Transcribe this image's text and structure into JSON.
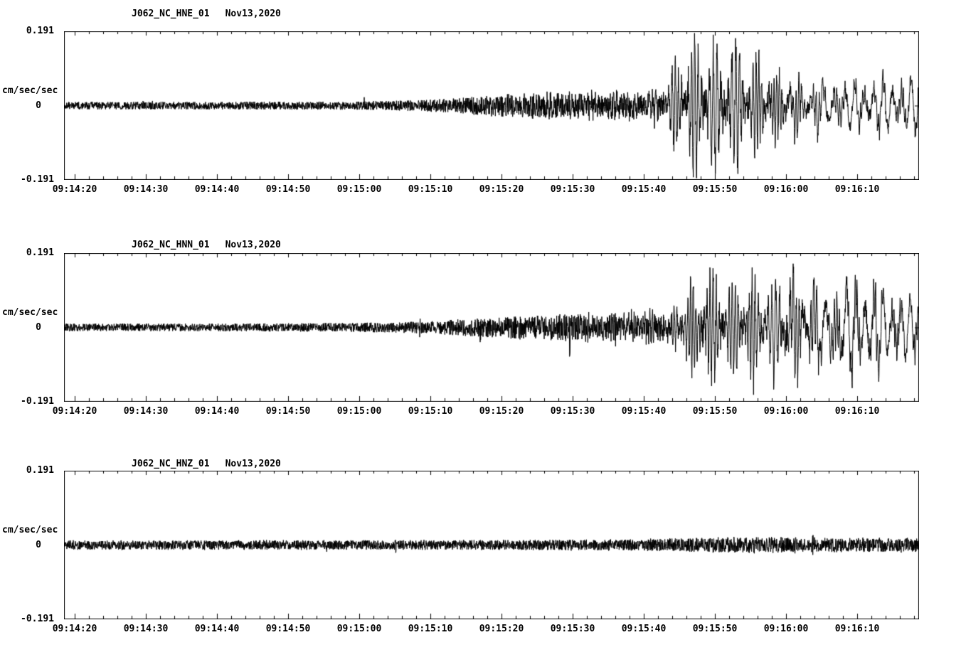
{
  "figure": {
    "background": "#ffffff",
    "trace_color": "#000000",
    "axis_color": "#000000"
  },
  "time_axis": {
    "tick_labels": [
      "09:14:20",
      "09:14:30",
      "09:14:40",
      "09:14:50",
      "09:15:00",
      "09:15:10",
      "09:15:20",
      "09:15:30",
      "09:15:40",
      "09:15:50",
      "09:16:00",
      "09:16:10"
    ],
    "tick_seconds": [
      0,
      10,
      20,
      30,
      40,
      50,
      60,
      70,
      80,
      90,
      100,
      110
    ],
    "minor_tick_interval_s": 2,
    "window_start_s": -1.5,
    "window_end_s": 118.7
  },
  "chart_data": [
    {
      "type": "line",
      "title": "J062_NC_HNE_01",
      "date": "Nov13,2020",
      "xlabel": "",
      "ylabel": "cm/sec/sec",
      "ylim": [
        -0.191,
        0.191
      ],
      "ytick_labels": {
        "top": "0.191",
        "zero": "0",
        "bottom": "-0.191"
      },
      "x_tick_labels": [
        "09:14:20",
        "09:14:30",
        "09:14:40",
        "09:14:50",
        "09:15:00",
        "09:15:10",
        "09:15:20",
        "09:15:30",
        "09:15:40",
        "09:15:50",
        "09:16:00",
        "09:16:10"
      ],
      "description": "Horizontal east accelerogram: low background noise, emergent higher-frequency arrivals after 09:15:10, strong motion burst beginning ~09:15:43 peaking near full scale 0.19 around 09:15:47, long lower-frequency coda through 09:16:18",
      "strong_motion": true,
      "strong_motion_onset_s": 83,
      "peak_amp": 0.19,
      "peak_time_s": 87,
      "envelope_t_s": [
        -3,
        0,
        20,
        40,
        48,
        54,
        58,
        62,
        68,
        74,
        80,
        83,
        85,
        87,
        90,
        93,
        96,
        99,
        102,
        106,
        110,
        114,
        118,
        119
      ],
      "envelope_amp": [
        0.01,
        0.01,
        0.01,
        0.011,
        0.014,
        0.02,
        0.028,
        0.034,
        0.038,
        0.04,
        0.046,
        0.06,
        0.13,
        0.19,
        0.155,
        0.17,
        0.13,
        0.1,
        0.085,
        0.075,
        0.07,
        0.078,
        0.082,
        0.082
      ]
    },
    {
      "type": "line",
      "title": "J062_NC_HNN_01",
      "date": "Nov13,2020",
      "xlabel": "",
      "ylabel": "cm/sec/sec",
      "ylim": [
        -0.191,
        0.191
      ],
      "ytick_labels": {
        "top": "0.191",
        "zero": "0",
        "bottom": "-0.191"
      },
      "x_tick_labels": [
        "09:14:20",
        "09:14:30",
        "09:14:40",
        "09:14:50",
        "09:15:00",
        "09:15:10",
        "09:15:20",
        "09:15:30",
        "09:15:40",
        "09:15:50",
        "09:16:00",
        "09:16:10"
      ],
      "description": "Horizontal north accelerogram: low background noise, emergent arrivals after 09:15:10, strong shaking from ~09:15:44 with sustained large amplitudes, maximum ~0.19 near 09:16:00, large low-frequency coda persisting to end of window",
      "strong_motion": true,
      "strong_motion_onset_s": 84,
      "peak_amp": 0.19,
      "peak_time_s": 100,
      "envelope_t_s": [
        -3,
        0,
        20,
        40,
        50,
        56,
        60,
        65,
        70,
        76,
        80,
        84,
        86,
        89,
        92,
        95,
        98,
        100,
        103,
        106,
        109,
        112,
        115,
        119
      ],
      "envelope_amp": [
        0.01,
        0.01,
        0.01,
        0.012,
        0.016,
        0.024,
        0.03,
        0.036,
        0.04,
        0.042,
        0.046,
        0.055,
        0.11,
        0.15,
        0.12,
        0.14,
        0.13,
        0.19,
        0.14,
        0.12,
        0.15,
        0.13,
        0.1,
        0.085
      ]
    },
    {
      "type": "line",
      "title": "J062_NC_HNZ_01",
      "date": "Nov13,2020",
      "xlabel": "",
      "ylabel": "cm/sec/sec",
      "ylim": [
        -0.191,
        0.191
      ],
      "ytick_labels": {
        "top": "0.191",
        "zero": "0",
        "bottom": "-0.191"
      },
      "x_tick_labels": [
        "09:14:20",
        "09:14:30",
        "09:14:40",
        "09:14:50",
        "09:15:00",
        "09:15:10",
        "09:15:20",
        "09:15:30",
        "09:15:40",
        "09:15:50",
        "09:16:00",
        "09:16:10"
      ],
      "description": "Vertical accelerogram: nearly uniform low-amplitude noise band across the whole window, only slight amplitude increase after ~09:15:40, no full-scale excursions",
      "strong_motion": false,
      "strong_motion_onset_s": null,
      "peak_amp": 0.022,
      "peak_time_s": 95,
      "envelope_t_s": [
        -3,
        0,
        30,
        60,
        75,
        82,
        88,
        95,
        102,
        110,
        119
      ],
      "envelope_amp": [
        0.013,
        0.013,
        0.013,
        0.014,
        0.015,
        0.017,
        0.02,
        0.022,
        0.022,
        0.02,
        0.019
      ]
    }
  ]
}
